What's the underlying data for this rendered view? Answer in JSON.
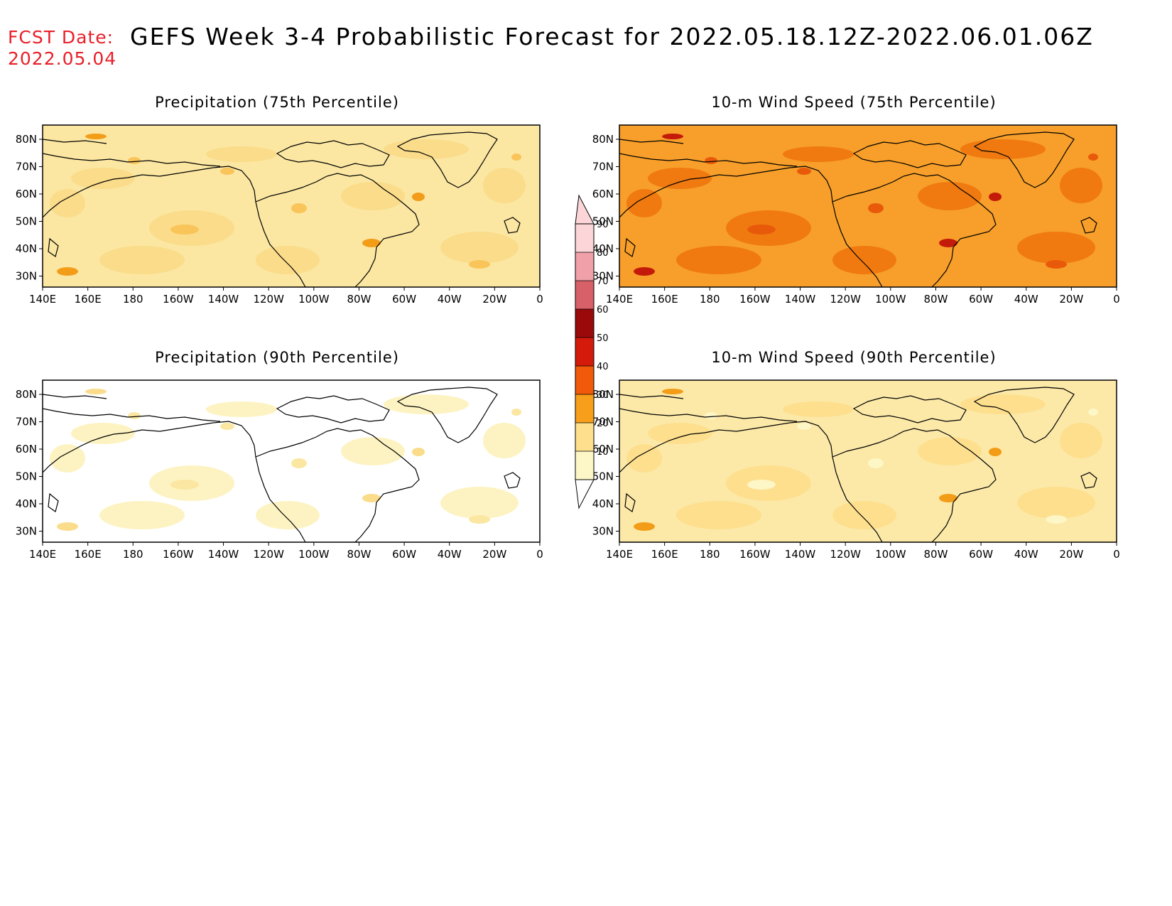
{
  "header": {
    "fcst_label": "FCST Date:",
    "fcst_date": "2022.05.04",
    "title": "GEFS Week 3-4 Probabilistic Forecast for 2022.05.18.12Z-2022.06.01.06Z"
  },
  "colors": {
    "header_red": "#e8202a"
  },
  "map": {
    "lat_ticks": [
      "80N",
      "70N",
      "60N",
      "50N",
      "40N",
      "30N"
    ],
    "lon_ticks": [
      "140E",
      "160E",
      "180",
      "160W",
      "140W",
      "120W",
      "100W",
      "80W",
      "60W",
      "40W",
      "20W",
      "0"
    ]
  },
  "panels": [
    {
      "title": "Precipitation (75th Percentile)",
      "fill": "#fbe7a2",
      "patch": "#fadc8a",
      "accent": "#f9c45a",
      "hot": "#f39c18"
    },
    {
      "title": "10-m Wind Speed (75th Percentile)",
      "fill": "#f79f2a",
      "patch": "#f07a10",
      "accent": "#e85a0a",
      "hot": "#c41a0a"
    },
    {
      "title": "Precipitation (90th Percentile)",
      "fill": "#ffffff",
      "patch": "#fdf3c2",
      "accent": "#fbe7a2",
      "hot": "#fadc8a"
    },
    {
      "title": "10-m Wind Speed (90th Percentile)",
      "fill": "#fce9a8",
      "patch": "#fddf8e",
      "accent": "#fdf6c6",
      "hot": "#f39c18"
    }
  ],
  "colorbar": {
    "levels": [
      "90",
      "80",
      "70",
      "60",
      "50",
      "40",
      "30",
      "20",
      "10"
    ],
    "colors": [
      "#fbd5d8",
      "#f0a0a8",
      "#d86068",
      "#9a0a0a",
      "#d41a0a",
      "#f05a0a",
      "#f79f1a",
      "#fddf8e",
      "#fdf6c6"
    ]
  }
}
